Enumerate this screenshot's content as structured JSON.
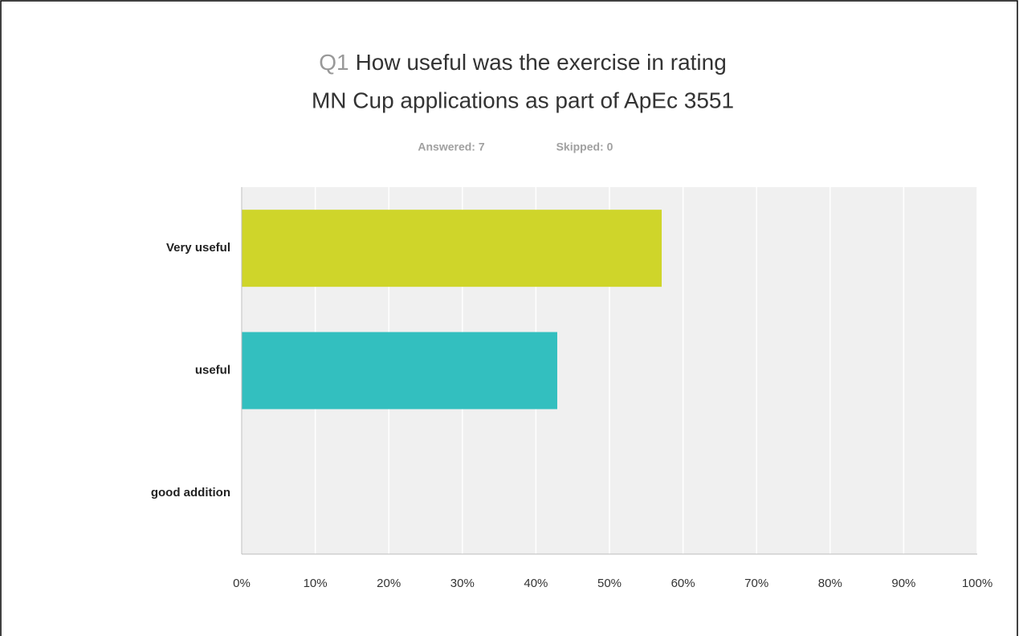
{
  "chart_data": {
    "type": "bar",
    "orientation": "horizontal",
    "question_number": "Q1",
    "title": [
      "How useful was the exercise in rating",
      "MN Cup applications as part of ApEc 3551"
    ],
    "subtitle": [
      "Answered: 7",
      "Skipped: 0"
    ],
    "categories": [
      "Very useful",
      "useful",
      "good addition"
    ],
    "values": [
      57.1,
      42.9,
      0
    ],
    "colors": [
      "#cfd52a",
      "#33bfbf",
      "#f79b32"
    ],
    "xlim": [
      0,
      100
    ],
    "xticks": [
      {
        "value": 0,
        "label": "0%"
      },
      {
        "value": 10,
        "label": "10%"
      },
      {
        "value": 20,
        "label": "20%"
      },
      {
        "value": 30,
        "label": "30%"
      },
      {
        "value": 40,
        "label": "40%"
      },
      {
        "value": 50,
        "label": "50%"
      },
      {
        "value": 60,
        "label": "60%"
      },
      {
        "value": 70,
        "label": "70%"
      },
      {
        "value": 80,
        "label": "80%"
      },
      {
        "value": 90,
        "label": "90%"
      },
      {
        "value": 100,
        "label": "100%"
      }
    ],
    "grid": true
  }
}
